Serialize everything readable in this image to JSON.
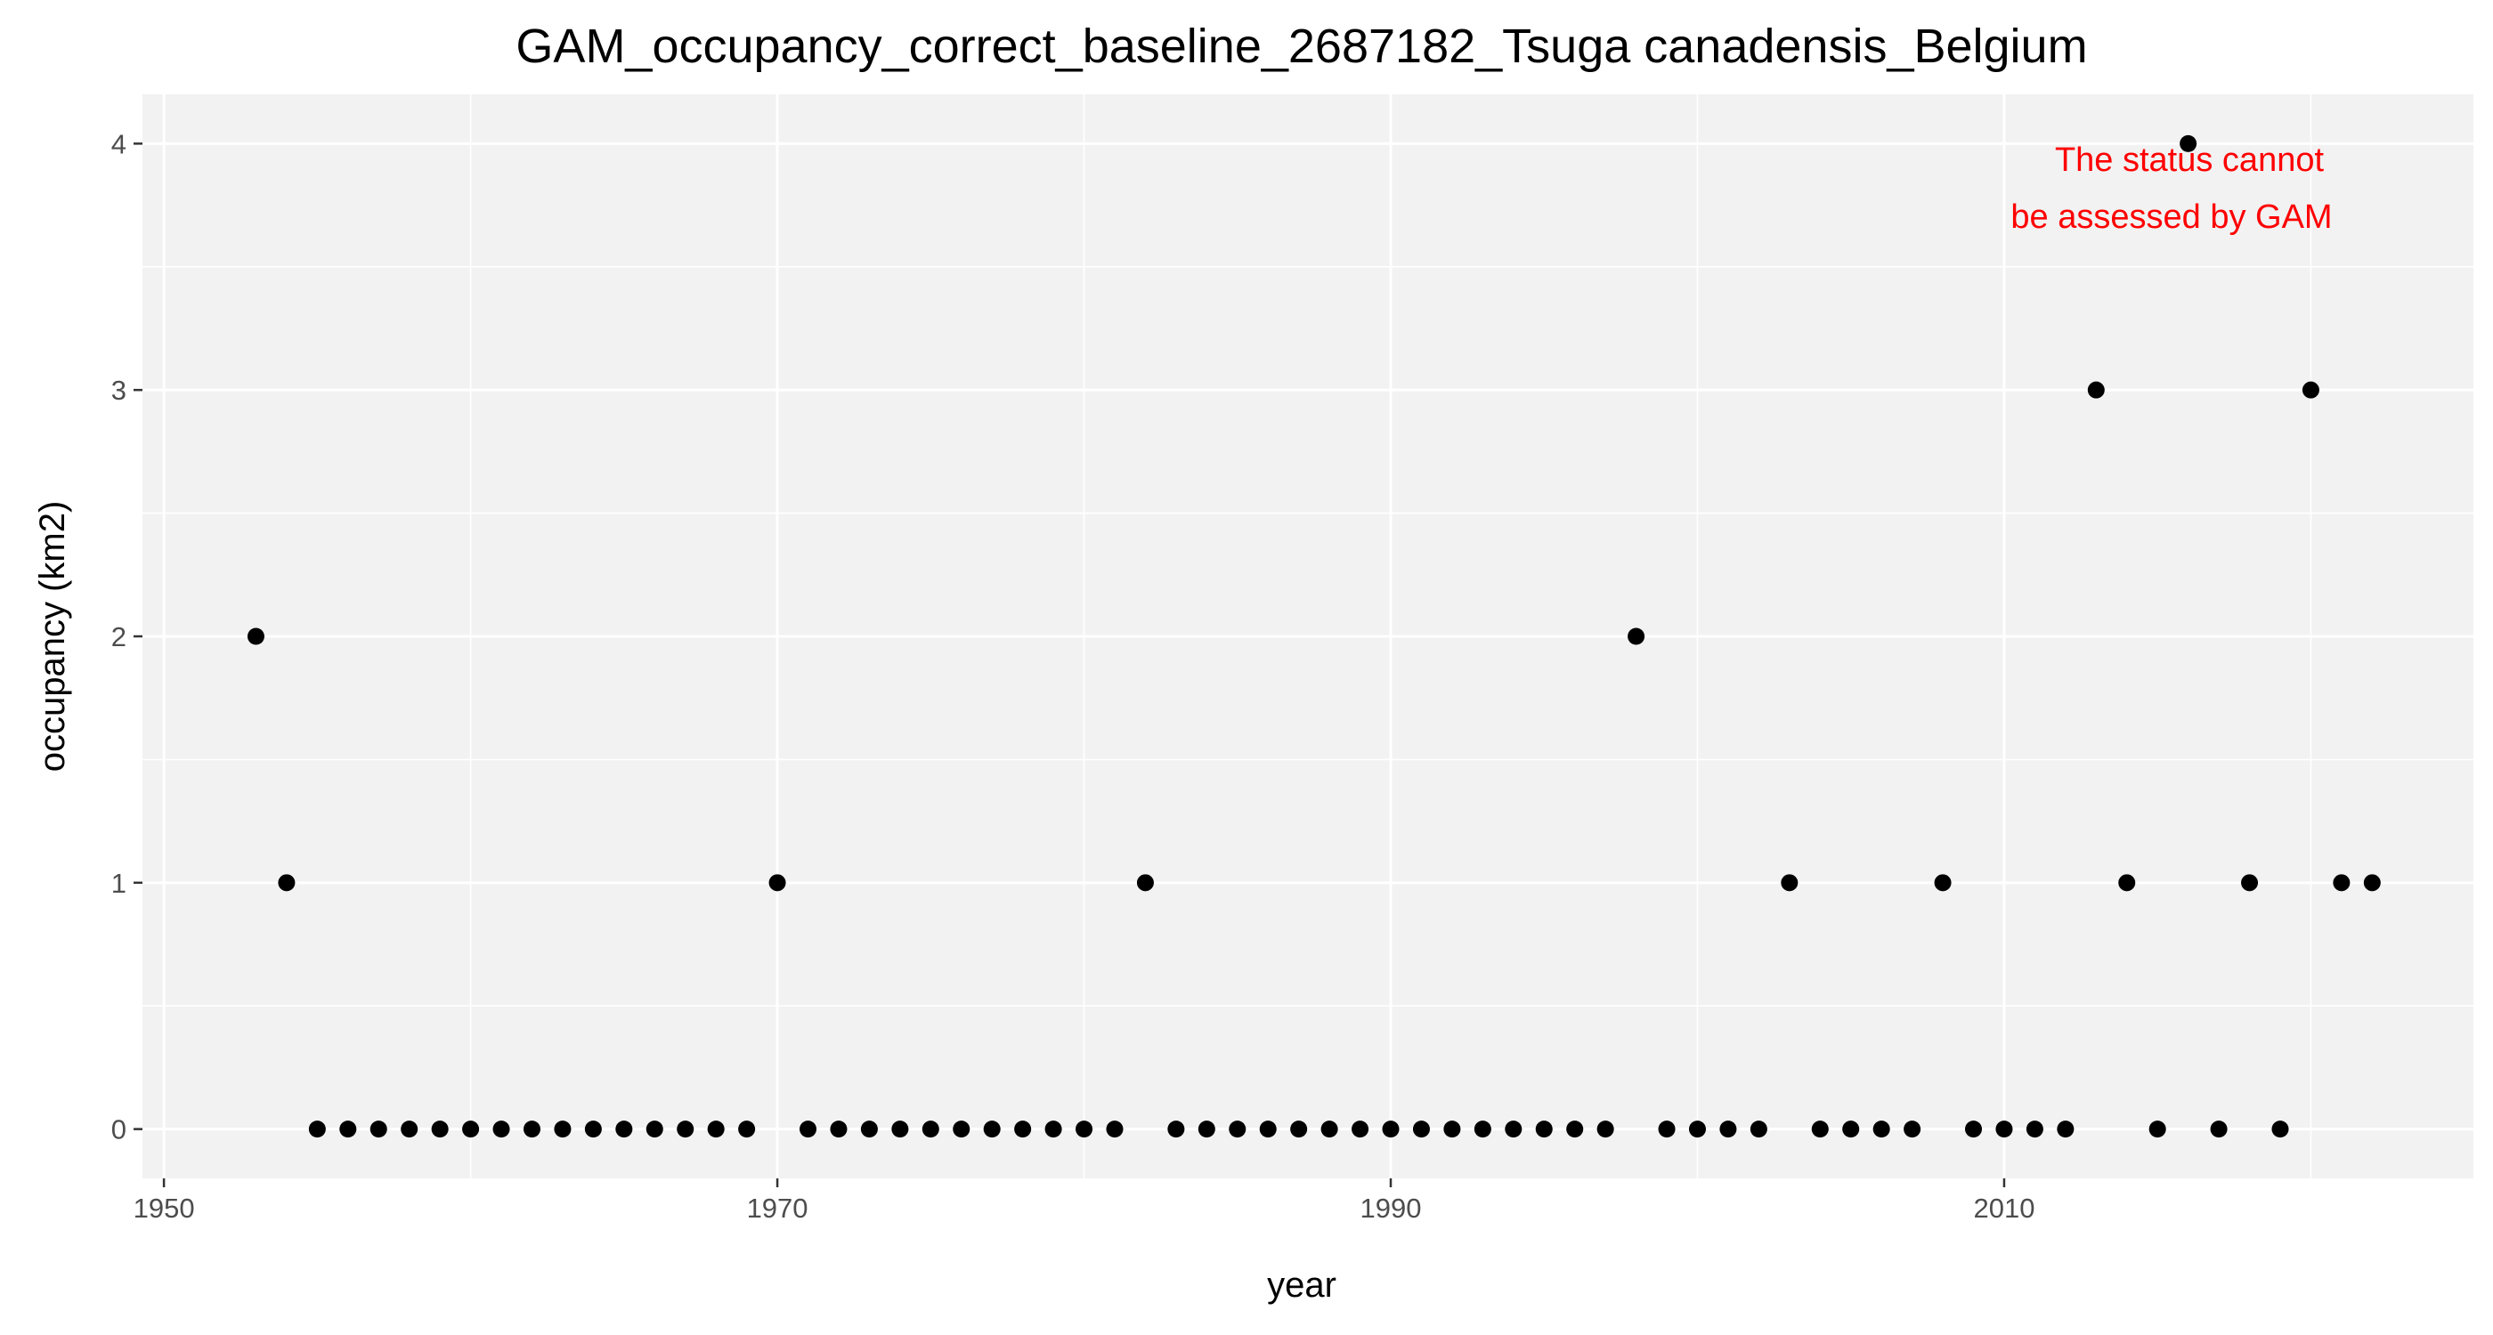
{
  "chart_data": {
    "type": "scatter",
    "title": "GAM_occupancy_correct_baseline_2687182_Tsuga canadensis_Belgium",
    "xlabel": "year",
    "ylabel": "occupancy (km2)",
    "xlim": [
      1949.3,
      2025.3
    ],
    "ylim": [
      -0.2,
      4.2
    ],
    "xticks": [
      1950,
      1970,
      1990,
      2010
    ],
    "xtick_labels": [
      "1950",
      "1970",
      "1990",
      "2010"
    ],
    "yticks": [
      0,
      1,
      2,
      3,
      4
    ],
    "ytick_labels": [
      "0",
      "1",
      "2",
      "3",
      "4"
    ],
    "grid": true,
    "legend": "none",
    "colors": {
      "panel": "#f2f2f2",
      "grid": "#ffffff",
      "point": "#000000",
      "annotation": "#ff0000"
    },
    "annotation": {
      "lines": [
        "The status cannot",
        "be assessed by GAM"
      ]
    },
    "x": [
      1953,
      1954,
      1955,
      1956,
      1957,
      1958,
      1959,
      1960,
      1961,
      1962,
      1963,
      1964,
      1965,
      1966,
      1967,
      1968,
      1969,
      1970,
      1971,
      1972,
      1973,
      1974,
      1975,
      1976,
      1977,
      1978,
      1979,
      1980,
      1981,
      1982,
      1983,
      1984,
      1985,
      1986,
      1987,
      1988,
      1989,
      1990,
      1991,
      1992,
      1993,
      1994,
      1995,
      1996,
      1997,
      1998,
      1999,
      2000,
      2001,
      2002,
      2003,
      2004,
      2005,
      2006,
      2007,
      2008,
      2009,
      2010,
      2011,
      2012,
      2013,
      2014,
      2015,
      2016,
      2017,
      2018,
      2019,
      2020,
      2021,
      2022
    ],
    "y": [
      2,
      1,
      0,
      0,
      0,
      0,
      0,
      0,
      0,
      0,
      0,
      0,
      0,
      0,
      0,
      0,
      0,
      1,
      0,
      0,
      0,
      0,
      0,
      0,
      0,
      0,
      0,
      0,
      0,
      1,
      0,
      0,
      0,
      0,
      0,
      0,
      0,
      0,
      0,
      0,
      0,
      0,
      0,
      0,
      0,
      2,
      0,
      0,
      0,
      0,
      1,
      0,
      0,
      0,
      0,
      1,
      0,
      0,
      0,
      0,
      3,
      1,
      0,
      4,
      0,
      1,
      0,
      3,
      1,
      1
    ]
  }
}
